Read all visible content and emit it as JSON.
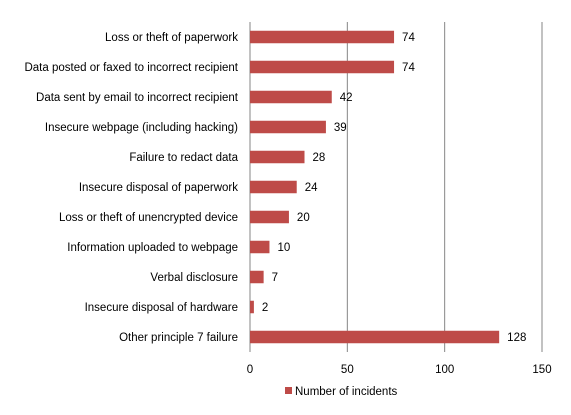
{
  "chart_data": {
    "type": "bar",
    "orientation": "horizontal",
    "categories": [
      "Loss or theft of paperwork",
      "Data posted or faxed to incorrect recipient",
      "Data sent by email to incorrect recipient",
      "Insecure webpage (including hacking)",
      "Failure to redact data",
      "Insecure disposal of paperwork",
      "Loss or theft of unencrypted device",
      "Information uploaded to webpage",
      "Verbal disclosure",
      "Insecure disposal of hardware",
      "Other principle 7 failure"
    ],
    "series": [
      {
        "name": "Number of incidents",
        "color": "#BE4B48",
        "values": [
          74,
          74,
          42,
          39,
          28,
          24,
          20,
          10,
          7,
          2,
          128
        ]
      }
    ],
    "xlim": [
      0,
      150
    ],
    "xticks": [
      0,
      50,
      100,
      150
    ],
    "xtick_labels": [
      "0",
      "50",
      "100",
      "150"
    ],
    "data_labels": [
      "74",
      "74",
      "42",
      "39",
      "28",
      "24",
      "20",
      "10",
      "7",
      "2",
      "128"
    ],
    "grid": "vertical",
    "legend_position": "bottom"
  }
}
